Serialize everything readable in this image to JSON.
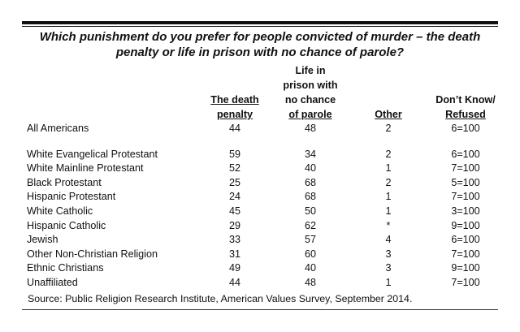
{
  "title": "Which punishment do you prefer for people convicted of murder – the death penalty or life in prison with no chance of parole?",
  "columns": [
    {
      "lines": [
        "The death",
        "penalty"
      ]
    },
    {
      "lines": [
        "Life in",
        "prison with",
        "no chance",
        "of parole"
      ]
    },
    {
      "lines": [
        "Other"
      ]
    },
    {
      "lines": [
        "Don’t Know/",
        "Refused"
      ]
    }
  ],
  "rows": [
    {
      "label": "All Americans",
      "death": "44",
      "life": "48",
      "other": "2",
      "dk": "6=100"
    },
    {
      "label": "White Evangelical Protestant",
      "death": "59",
      "life": "34",
      "other": "2",
      "dk": "6=100"
    },
    {
      "label": "White Mainline Protestant",
      "death": "52",
      "life": "40",
      "other": "1",
      "dk": "7=100"
    },
    {
      "label": "Black Protestant",
      "death": "25",
      "life": "68",
      "other": "2",
      "dk": "5=100"
    },
    {
      "label": "Hispanic Protestant",
      "death": "24",
      "life": "68",
      "other": "1",
      "dk": "7=100"
    },
    {
      "label": "White Catholic",
      "death": "45",
      "life": "50",
      "other": "1",
      "dk": "3=100"
    },
    {
      "label": "Hispanic Catholic",
      "death": "29",
      "life": "62",
      "other": "*",
      "dk": "9=100"
    },
    {
      "label": "Jewish",
      "death": "33",
      "life": "57",
      "other": "4",
      "dk": "6=100"
    },
    {
      "label": "Other Non-Christian Religion",
      "death": "31",
      "life": "60",
      "other": "3",
      "dk": "7=100"
    },
    {
      "label": "Ethnic Christians",
      "death": "49",
      "life": "40",
      "other": "3",
      "dk": "9=100"
    },
    {
      "label": "Unaffiliated",
      "death": "44",
      "life": "48",
      "other": "1",
      "dk": "7=100"
    }
  ],
  "source": "Source: Public Religion Research Institute, American Values Survey, September 2014."
}
